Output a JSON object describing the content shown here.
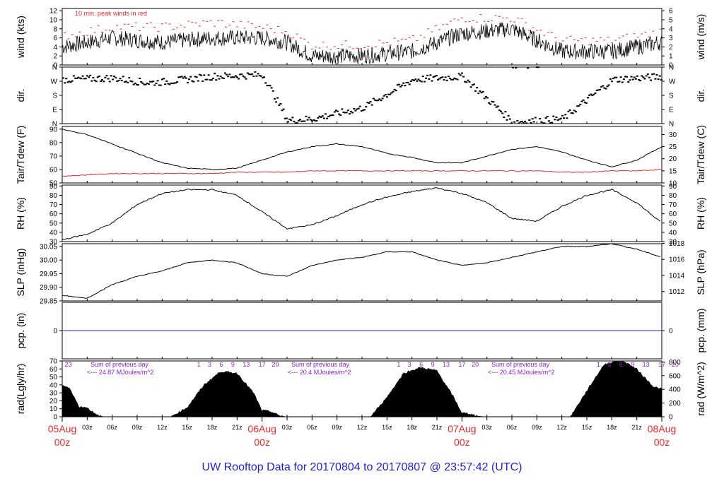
{
  "footer_title": "UW Rooftop Data for 20170804  to  20170807 @ 23:57:42  (UTC)",
  "colors": {
    "peak": "#e8282a",
    "dew": "#e8282a",
    "precip": "#2323c8",
    "date": "#e8282a",
    "title": "#2323c8",
    "solar": "#8a1ed2"
  },
  "x_ticks": [
    "03z",
    "06z",
    "09z",
    "12z",
    "15z",
    "18z",
    "21z",
    "03z",
    "06z",
    "09z",
    "12z",
    "15z",
    "18z",
    "21z",
    "03z",
    "06z",
    "09z",
    "12z",
    "15z",
    "18z",
    "21z"
  ],
  "day_labels": [
    {
      "day": "05Aug",
      "hour": "00z"
    },
    {
      "day": "06Aug",
      "hour": "00z"
    },
    {
      "day": "07Aug",
      "hour": "00z"
    },
    {
      "day": "08Aug",
      "hour": "00z"
    }
  ],
  "chart_data": [
    {
      "id": "wind",
      "type": "line",
      "ylabel": "wind (kts)",
      "ylabel_right": "wind (m/s)",
      "annotation": "10 min. peak winds in red",
      "yticks": [
        "0",
        "2",
        "4",
        "6",
        "8",
        "10",
        "12"
      ],
      "yticks_right": [
        "0",
        "1",
        "2",
        "3",
        "4",
        "5",
        "6"
      ],
      "ylim": [
        0,
        12.5
      ],
      "x_hours": [
        0,
        6,
        12,
        18,
        24,
        27,
        30,
        36,
        42,
        48,
        54,
        60,
        66,
        72
      ],
      "series": [
        {
          "values": [
            4,
            6,
            5,
            6,
            6,
            5,
            2,
            2,
            3,
            7,
            8,
            3,
            3,
            5
          ]
        },
        {
          "values": [
            6,
            8,
            8,
            9,
            8,
            7,
            4,
            4,
            5,
            10,
            10,
            5,
            5,
            7
          ]
        }
      ]
    },
    {
      "id": "dir",
      "type": "scatter",
      "ylabel": "dir.",
      "ylabel_right": "dir.",
      "yticks": [
        "N",
        "E",
        "S",
        "W",
        "N"
      ],
      "yticks_right": [
        "N",
        "E",
        "S",
        "W",
        "N"
      ],
      "ylim": [
        0,
        360
      ],
      "x_hours": [
        0,
        6,
        10,
        12,
        18,
        24,
        27,
        30,
        36,
        42,
        48,
        54,
        60,
        66,
        72
      ],
      "series": [
        {
          "values": [
            280,
            290,
            260,
            265,
            300,
            310,
            20,
            30,
            100,
            280,
            300,
            10,
            30,
            280,
            300
          ]
        }
      ]
    },
    {
      "id": "temp",
      "type": "line",
      "ylabel": "Tair/Tdew (F)",
      "ylabel_right": "Tair/Tdew (C)",
      "yticks": [
        "50",
        "60",
        "70",
        "80",
        "90"
      ],
      "yticks_right": [
        "10",
        "15",
        "20",
        "25",
        "30"
      ],
      "ylim": [
        50,
        92
      ],
      "x_hours": [
        0,
        3,
        6,
        9,
        12,
        15,
        18,
        21,
        24,
        27,
        30,
        33,
        36,
        39,
        42,
        45,
        48,
        51,
        54,
        57,
        60,
        63,
        66,
        69,
        72
      ],
      "series": [
        {
          "name": "Tair",
          "values": [
            90,
            86,
            79,
            72,
            65,
            61,
            60,
            61,
            67,
            73,
            77,
            79,
            77,
            72,
            69,
            65,
            65,
            70,
            75,
            77,
            73,
            67,
            62,
            67,
            77
          ]
        },
        {
          "name": "Tdew",
          "values": [
            55,
            56,
            57,
            57,
            57,
            57,
            57,
            58,
            58,
            58,
            59,
            59,
            59,
            59,
            59,
            59,
            59,
            59,
            59,
            59,
            58,
            58,
            59,
            59,
            60
          ]
        }
      ]
    },
    {
      "id": "rh",
      "type": "line",
      "ylabel": "RH (%)",
      "ylabel_right": "RH (%)",
      "yticks": [
        "30",
        "40",
        "50",
        "60",
        "70",
        "80",
        "90"
      ],
      "yticks_right": [
        "30",
        "40",
        "50",
        "60",
        "70",
        "80",
        "90"
      ],
      "ylim": [
        30,
        91
      ],
      "x_hours": [
        0,
        3,
        6,
        9,
        12,
        15,
        18,
        21,
        24,
        27,
        30,
        33,
        36,
        39,
        42,
        45,
        48,
        51,
        54,
        57,
        60,
        63,
        66,
        69,
        72
      ],
      "series": [
        {
          "values": [
            32,
            38,
            50,
            70,
            82,
            86,
            86,
            80,
            62,
            44,
            48,
            58,
            70,
            78,
            84,
            88,
            82,
            72,
            55,
            52,
            68,
            80,
            86,
            72,
            50
          ]
        }
      ]
    },
    {
      "id": "slp",
      "type": "line",
      "ylabel": "SLP (inHg)",
      "ylabel_right": "SLP (hPa)",
      "yticks": [
        "29.85",
        "29.90",
        "29.95",
        "30.00",
        "30.05"
      ],
      "yticks_right": [
        "1012",
        "1014",
        "1016",
        "1018"
      ],
      "ylim": [
        29.85,
        30.06
      ],
      "x_hours": [
        0,
        3,
        6,
        9,
        12,
        15,
        18,
        21,
        24,
        27,
        30,
        33,
        36,
        39,
        42,
        45,
        48,
        51,
        54,
        57,
        60,
        63,
        66,
        69,
        72
      ],
      "series": [
        {
          "values": [
            29.87,
            29.86,
            29.91,
            29.94,
            29.96,
            29.99,
            30.0,
            29.99,
            29.95,
            29.94,
            29.98,
            30.0,
            30.01,
            30.03,
            30.03,
            30.0,
            29.98,
            29.99,
            30.01,
            30.03,
            30.05,
            30.05,
            30.06,
            30.04,
            30.01
          ]
        }
      ]
    },
    {
      "id": "pcp",
      "type": "line",
      "ylabel": "pcp. (in)",
      "ylabel_right": "pcp. (mm)",
      "yticks": [
        "0"
      ],
      "yticks_right": [
        "0"
      ],
      "ylim": [
        -1,
        1
      ],
      "x_hours": [
        0,
        72
      ],
      "series": [
        {
          "values": [
            0,
            0
          ]
        }
      ]
    },
    {
      "id": "rad",
      "type": "area",
      "ylabel": "rad(Lgly/hr)",
      "ylabel_right": "rad (W/m^2)",
      "yticks": [
        "0",
        "10",
        "20",
        "30",
        "40",
        "50",
        "60",
        "70"
      ],
      "yticks_right": [
        "0",
        "200",
        "400",
        "600",
        "800"
      ],
      "ylim": [
        0,
        70
      ],
      "x_hours": [
        0,
        1,
        2,
        3,
        4,
        5,
        13,
        15,
        17,
        19,
        21,
        23,
        24,
        25,
        26,
        27,
        37,
        39,
        41,
        43,
        45,
        47,
        48,
        49,
        50,
        51,
        61,
        63,
        65,
        67,
        69,
        71,
        72
      ],
      "series": [
        {
          "values": [
            40,
            35,
            13,
            12,
            3,
            0,
            0,
            12,
            40,
            57,
            55,
            30,
            8,
            7,
            2,
            0,
            0,
            25,
            55,
            62,
            58,
            25,
            5,
            4,
            1,
            0,
            0,
            33,
            65,
            73,
            60,
            38,
            35
          ]
        }
      ],
      "annotations": [
        {
          "text": "Sum of previous day",
          "sub": "<--- 24.87 MJoules/m^2"
        },
        {
          "text": "Sum of previous day",
          "sub": "<--- 20.4 MJoules/m^2"
        },
        {
          "text": "Sum of previous day",
          "sub": "<--- 20.45 MJoules/m^2"
        }
      ],
      "hour_marks": [
        "23",
        "1",
        "3",
        "6",
        "9",
        "13",
        "17",
        "20"
      ]
    }
  ]
}
